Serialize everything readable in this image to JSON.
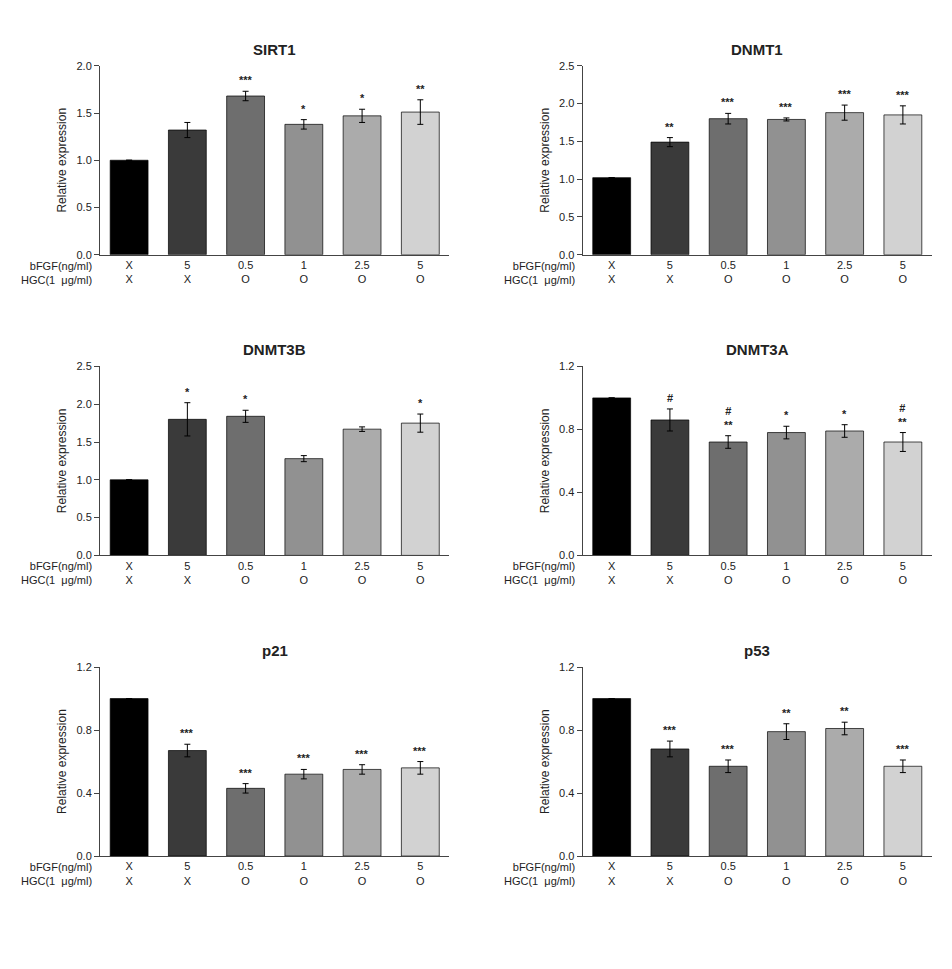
{
  "chart_data": [
    {
      "type": "bar",
      "title": "SIRT1",
      "categories": [
        "X\nX",
        "5\nX",
        "0.5\nO",
        "1\nO",
        "2.5\nO",
        "5\nO"
      ],
      "xlabel": "bFGF(ng/ml)\nHGC(1  μg/ml)",
      "ylabel": "Relative expression",
      "values": [
        1.0,
        1.32,
        1.68,
        1.38,
        1.47,
        1.51
      ],
      "errors": [
        0.0,
        0.08,
        0.05,
        0.05,
        0.07,
        0.13
      ],
      "colors": [
        "#000000",
        "#3a3a3a",
        "#6e6e6e",
        "#919191",
        "#ababab",
        "#d2d2d2"
      ],
      "ylim": [
        0,
        2.0
      ],
      "yticks": [
        {
          "value": 0,
          "label": "0.0"
        },
        0.5,
        {
          "value": 1,
          "label": "1.0"
        },
        1.5,
        {
          "value": 2,
          "label": "2.0"
        }
      ],
      "grid": false,
      "annotations": [
        {
          "x": 2,
          "text": "***"
        },
        {
          "x": 3,
          "text": "*"
        },
        {
          "x": 4,
          "text": "*"
        },
        {
          "x": 5,
          "text": "**"
        }
      ]
    },
    {
      "type": "bar",
      "title": "DNMT1",
      "categories": [
        "X\nX",
        "5\nX",
        "0.5\nO",
        "1\nO",
        "2.5\nO",
        "5\nO"
      ],
      "xlabel": "bFGF(ng/ml)\nHGC(1  μg/ml)",
      "ylabel": "Relative expression",
      "values": [
        1.02,
        1.49,
        1.8,
        1.79,
        1.88,
        1.85
      ],
      "errors": [
        0.0,
        0.06,
        0.07,
        0.02,
        0.1,
        0.12
      ],
      "colors": [
        "#000000",
        "#3a3a3a",
        "#6e6e6e",
        "#919191",
        "#ababab",
        "#d2d2d2"
      ],
      "ylim": [
        0,
        2.5
      ],
      "yticks": [
        {
          "value": 0,
          "label": "0.0"
        },
        0.5,
        {
          "value": 1,
          "label": "1.0"
        },
        1.5,
        {
          "value": 2,
          "label": "2.0"
        },
        2.5
      ],
      "grid": false,
      "annotations": [
        {
          "x": 1,
          "text": "**"
        },
        {
          "x": 2,
          "text": "***"
        },
        {
          "x": 3,
          "text": "***"
        },
        {
          "x": 4,
          "text": "***"
        },
        {
          "x": 5,
          "text": "***"
        }
      ]
    },
    {
      "type": "bar",
      "title": "DNMT3B",
      "categories": [
        "X\nX",
        "5\nX",
        "0.5\nO",
        "1\nO",
        "2.5\nO",
        "5\nO"
      ],
      "xlabel": "bFGF(ng/ml)\nHGC(1  μg/ml)",
      "ylabel": "Relative expression",
      "values": [
        1.0,
        1.8,
        1.84,
        1.28,
        1.67,
        1.75
      ],
      "errors": [
        0.0,
        0.22,
        0.08,
        0.04,
        0.03,
        0.12
      ],
      "colors": [
        "#000000",
        "#3a3a3a",
        "#6e6e6e",
        "#919191",
        "#ababab",
        "#d2d2d2"
      ],
      "ylim": [
        0,
        2.5
      ],
      "yticks": [
        {
          "value": 0,
          "label": "0.0"
        },
        0.5,
        {
          "value": 1,
          "label": "1.0"
        },
        1.5,
        {
          "value": 2,
          "label": "2.0"
        },
        2.5
      ],
      "grid": false,
      "annotations": [
        {
          "x": 1,
          "text": "*"
        },
        {
          "x": 2,
          "text": "*"
        },
        {
          "x": 5,
          "text": "*"
        }
      ]
    },
    {
      "type": "bar",
      "title": "DNMT3A",
      "categories": [
        "X\nX",
        "5\nX",
        "0.5\nO",
        "1\nO",
        "2.5\nO",
        "5\nO"
      ],
      "xlabel": "bFGF(ng/ml)\nHGC(1  μg/ml)",
      "ylabel": "Relative expression",
      "values": [
        1.0,
        0.86,
        0.72,
        0.78,
        0.79,
        0.72
      ],
      "errors": [
        0.0,
        0.07,
        0.04,
        0.04,
        0.04,
        0.06
      ],
      "colors": [
        "#000000",
        "#3a3a3a",
        "#6e6e6e",
        "#919191",
        "#ababab",
        "#d2d2d2"
      ],
      "ylim": [
        0,
        1.2
      ],
      "yticks": [
        {
          "value": 0,
          "label": "0.0"
        },
        0.4,
        0.8,
        1.2
      ],
      "grid": false,
      "annotations": [
        {
          "x": 1,
          "text": "#"
        },
        {
          "x": 2,
          "text": "#\n**"
        },
        {
          "x": 3,
          "text": "*"
        },
        {
          "x": 4,
          "text": "*"
        },
        {
          "x": 5,
          "text": "#\n**"
        }
      ]
    },
    {
      "type": "bar",
      "title": "p21",
      "categories": [
        "X\nX",
        "5\nX",
        "0.5\nO",
        "1\nO",
        "2.5\nO",
        "5\nO"
      ],
      "xlabel": "bFGF(ng/ml)\nHGC(1  μg/ml)",
      "ylabel": "Relative expression",
      "values": [
        1.0,
        0.67,
        0.43,
        0.52,
        0.55,
        0.56
      ],
      "errors": [
        0.0,
        0.04,
        0.03,
        0.03,
        0.03,
        0.04
      ],
      "colors": [
        "#000000",
        "#3a3a3a",
        "#6e6e6e",
        "#919191",
        "#ababab",
        "#d2d2d2"
      ],
      "ylim": [
        0,
        1.2
      ],
      "yticks": [
        {
          "value": 0,
          "label": "0.0"
        },
        0.4,
        0.8,
        1.2
      ],
      "grid": false,
      "annotations": [
        {
          "x": 1,
          "text": "***"
        },
        {
          "x": 2,
          "text": "***"
        },
        {
          "x": 3,
          "text": "***"
        },
        {
          "x": 4,
          "text": "***"
        },
        {
          "x": 5,
          "text": "***"
        }
      ]
    },
    {
      "type": "bar",
      "title": "p53",
      "categories": [
        "X\nX",
        "5\nX",
        "0.5\nO",
        "1\nO",
        "2.5\nO",
        "5\nO"
      ],
      "xlabel": "bFGF(ng/ml)\nHGC(1  μg/ml)",
      "ylabel": "Relative expression",
      "values": [
        1.0,
        0.68,
        0.57,
        0.79,
        0.81,
        0.57
      ],
      "errors": [
        0.0,
        0.05,
        0.04,
        0.05,
        0.04,
        0.04
      ],
      "colors": [
        "#000000",
        "#3a3a3a",
        "#6e6e6e",
        "#919191",
        "#ababab",
        "#d2d2d2"
      ],
      "ylim": [
        0,
        1.2
      ],
      "yticks": [
        {
          "value": 0,
          "label": "0.0"
        },
        0.4,
        0.8,
        1.2
      ],
      "grid": false,
      "annotations": [
        {
          "x": 1,
          "text": "***"
        },
        {
          "x": 2,
          "text": "***"
        },
        {
          "x": 3,
          "text": "**"
        },
        {
          "x": 4,
          "text": "**"
        },
        {
          "x": 5,
          "text": "***"
        }
      ]
    }
  ]
}
